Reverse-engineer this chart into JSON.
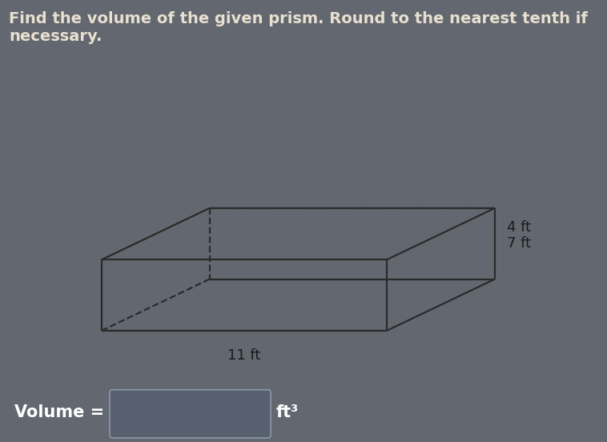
{
  "title_line1": "Find the volume of the given prism. Round to the nearest tenth if",
  "title_line2": "necessary.",
  "title_color": "#e8e0d0",
  "bg_color": "#636870",
  "box_bg_color": "#e8dfc8",
  "box_border_color": "#2a2a2a",
  "line_color": "#2a2a2a",
  "dim_label_length": "11 ft",
  "dim_label_width": "7 ft",
  "dim_label_height": "4 ft",
  "volume_label": "Volume =",
  "volume_unit": "ft³",
  "input_box_color": "#586070",
  "input_box_border": "#8899aa",
  "title_fontsize": 14,
  "label_fontsize": 13,
  "volume_fontsize": 15
}
